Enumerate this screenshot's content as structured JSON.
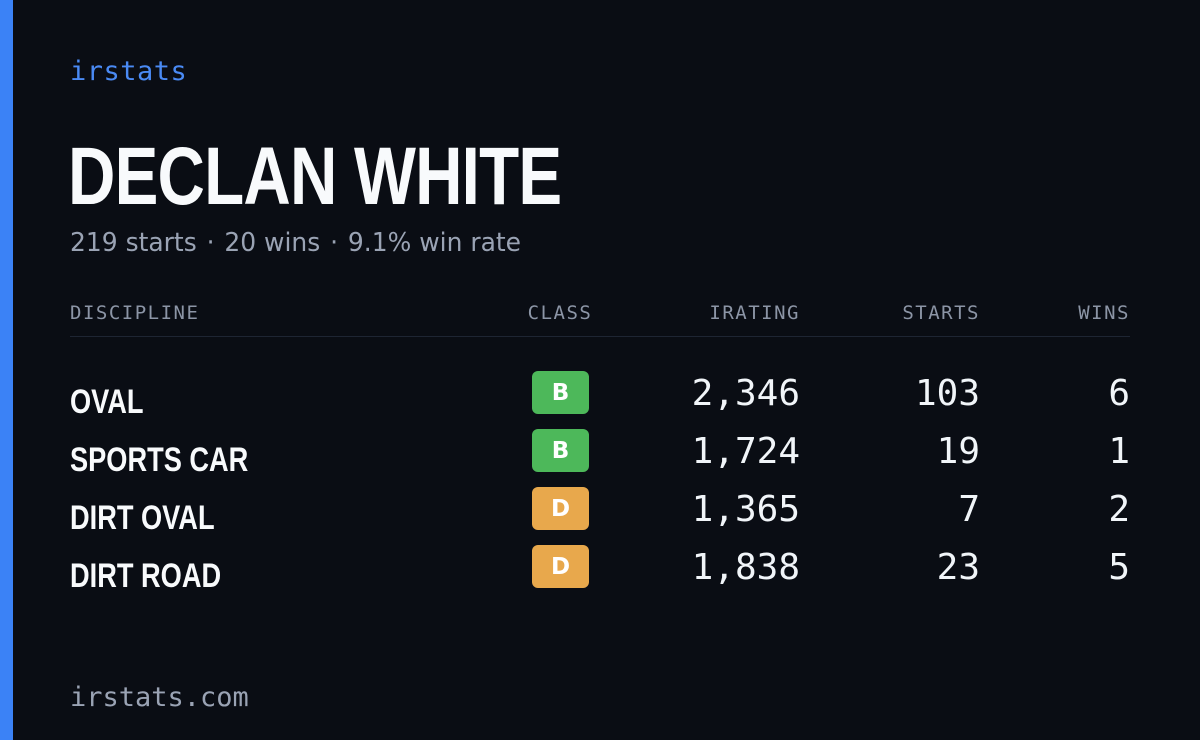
{
  "brand": "irstats",
  "driver": {
    "name": "DECLAN WHITE",
    "starts_text": "219 starts",
    "wins_text": "20 wins",
    "winrate_text": "9.1% win rate",
    "separator": "·"
  },
  "table": {
    "headers": {
      "discipline": "DISCIPLINE",
      "class": "CLASS",
      "irating": "IRATING",
      "starts": "STARTS",
      "wins": "WINS"
    },
    "rows": [
      {
        "discipline": "OVAL",
        "class": "B",
        "irating": "2,346",
        "starts": "103",
        "wins": "6"
      },
      {
        "discipline": "SPORTS CAR",
        "class": "B",
        "irating": "1,724",
        "starts": "19",
        "wins": "1"
      },
      {
        "discipline": "DIRT OVAL",
        "class": "D",
        "irating": "1,365",
        "starts": "7",
        "wins": "2"
      },
      {
        "discipline": "DIRT ROAD",
        "class": "D",
        "irating": "1,838",
        "starts": "23",
        "wins": "5"
      }
    ]
  },
  "class_colors": {
    "B": "#4db85a",
    "D": "#e8a84c"
  },
  "accent_color": "#3b82f6",
  "footer": "irstats.com"
}
